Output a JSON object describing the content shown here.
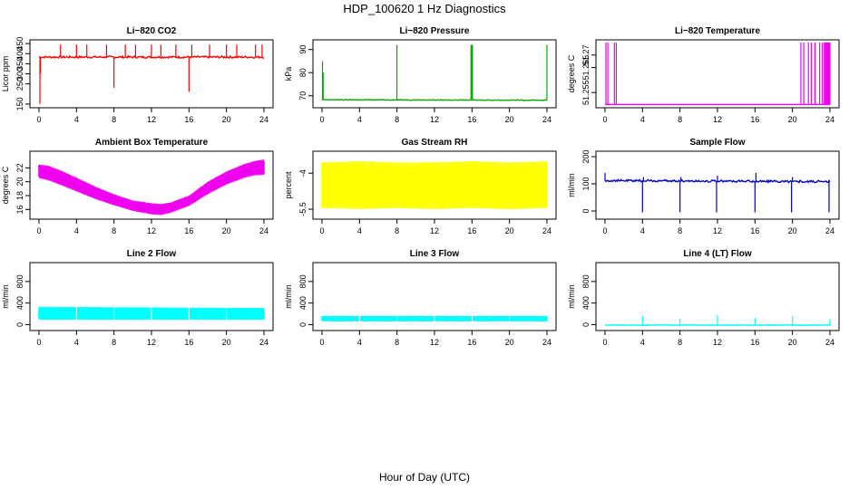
{
  "figure": {
    "title": "HDP_100620  1 Hz Diagnostics",
    "xlabel": "Hour of Day (UTC)"
  },
  "chart_data": [
    {
      "type": "line",
      "id": "co2",
      "title": "Li−820 CO2",
      "ylabel": "Licor ppm",
      "color": "#ff0000",
      "xlim": [
        0,
        24
      ],
      "ylim": [
        145,
        455
      ],
      "xticks": [
        0,
        4,
        8,
        12,
        16,
        20,
        24
      ],
      "yticks": [
        150,
        250,
        300,
        350,
        400,
        450
      ],
      "baseline": [
        [
          0,
          383
        ],
        [
          24,
          383
        ]
      ],
      "noise": 5,
      "spikes": [
        [
          0.1,
          150
        ],
        [
          0.15,
          300
        ],
        [
          2.3,
          445
        ],
        [
          4,
          445
        ],
        [
          5.1,
          445
        ],
        [
          7.2,
          445
        ],
        [
          8,
          230
        ],
        [
          9.2,
          445
        ],
        [
          10.3,
          445
        ],
        [
          12,
          445
        ],
        [
          13,
          445
        ],
        [
          14.6,
          445
        ],
        [
          16,
          210
        ],
        [
          16.3,
          445
        ],
        [
          18.2,
          445
        ],
        [
          20,
          445
        ],
        [
          21.1,
          445
        ],
        [
          23.1,
          445
        ],
        [
          23.8,
          445
        ]
      ]
    },
    {
      "type": "line",
      "id": "pressure",
      "title": "Li−820 Pressure",
      "ylabel": "kPa",
      "color": "#00aa00",
      "xlim": [
        0,
        24
      ],
      "ylim": [
        66,
        93
      ],
      "xticks": [
        0,
        4,
        8,
        12,
        16,
        20,
        24
      ],
      "yticks": [
        70,
        80,
        90
      ],
      "baseline": [
        [
          0,
          68.3
        ],
        [
          24,
          68.1
        ]
      ],
      "noise": 0.15,
      "spikes": [
        [
          0.05,
          85
        ],
        [
          0.12,
          80
        ],
        [
          8,
          92
        ],
        [
          15.9,
          92
        ],
        [
          16,
          92
        ],
        [
          16.05,
          92
        ],
        [
          24,
          92
        ]
      ]
    },
    {
      "type": "line",
      "id": "temperature",
      "title": "Li−820 Temperature",
      "ylabel": "degrees C",
      "color": "#ee00ee",
      "xlim": [
        0,
        24
      ],
      "ylim": [
        51.25,
        51.275
      ],
      "xticks": [
        0,
        4,
        8,
        12,
        16,
        20,
        24
      ],
      "yticks": [
        51.255,
        51.265,
        51.27
      ],
      "baseline": [
        [
          0,
          51.2502
        ],
        [
          24,
          51.2502
        ]
      ],
      "noise": 0,
      "spikes": [
        [
          0.1,
          51.275
        ],
        [
          0.3,
          51.275
        ],
        [
          1.0,
          51.275
        ],
        [
          1.2,
          51.275
        ],
        [
          20.9,
          51.275
        ],
        [
          21.2,
          51.275
        ],
        [
          21.7,
          51.275
        ],
        [
          22.0,
          51.275
        ],
        [
          22.4,
          51.275
        ],
        [
          22.9,
          51.275
        ],
        [
          23.2,
          51.275
        ],
        [
          23.4,
          51.275
        ],
        [
          23.5,
          51.275
        ],
        [
          23.6,
          51.275
        ],
        [
          23.7,
          51.275
        ],
        [
          23.8,
          51.275
        ],
        [
          23.9,
          51.275
        ],
        [
          24,
          51.275
        ]
      ]
    },
    {
      "type": "area",
      "id": "ambient_box_temp",
      "title": "Ambient Box Temperature",
      "ylabel": "degrees C",
      "color": "#ee00ee",
      "xlim": [
        0,
        24
      ],
      "ylim": [
        15,
        24
      ],
      "xticks": [
        0,
        4,
        8,
        12,
        16,
        20,
        24
      ],
      "yticks": [
        16,
        18,
        20,
        22
      ],
      "upper": [
        [
          0,
          22.5
        ],
        [
          1,
          22.3
        ],
        [
          2,
          21.8
        ],
        [
          4,
          20.6
        ],
        [
          6,
          19.3
        ],
        [
          8,
          18.2
        ],
        [
          10,
          17.3
        ],
        [
          12,
          16.9
        ],
        [
          13,
          16.8
        ],
        [
          14,
          17.0
        ],
        [
          16,
          18.0
        ],
        [
          18,
          20.0
        ],
        [
          20,
          21.5
        ],
        [
          22,
          22.6
        ],
        [
          23,
          23.0
        ],
        [
          24,
          23.2
        ]
      ],
      "lower": [
        [
          0,
          20.5
        ],
        [
          1,
          20.2
        ],
        [
          2,
          19.7
        ],
        [
          4,
          18.6
        ],
        [
          6,
          17.5
        ],
        [
          8,
          16.6
        ],
        [
          10,
          15.8
        ],
        [
          12,
          15.3
        ],
        [
          13,
          15.2
        ],
        [
          14,
          15.5
        ],
        [
          16,
          16.5
        ],
        [
          18,
          18.2
        ],
        [
          20,
          19.6
        ],
        [
          22,
          20.6
        ],
        [
          23,
          20.9
        ],
        [
          24,
          21.0
        ]
      ]
    },
    {
      "type": "area",
      "id": "gas_stream_rh",
      "title": "Gas Stream RH",
      "ylabel": "percent",
      "color": "#ffff00",
      "xlim": [
        0,
        24
      ],
      "ylim": [
        -5.8,
        -3.2
      ],
      "xticks": [
        0,
        4,
        8,
        12,
        16,
        20,
        24
      ],
      "yticks": [
        -5.5,
        -4.0
      ],
      "upper": [
        [
          0,
          -3.55
        ],
        [
          4,
          -3.5
        ],
        [
          8,
          -3.55
        ],
        [
          12,
          -3.55
        ],
        [
          16,
          -3.5
        ],
        [
          20,
          -3.55
        ],
        [
          24,
          -3.5
        ]
      ],
      "lower": [
        [
          0,
          -5.45
        ],
        [
          4,
          -5.5
        ],
        [
          8,
          -5.45
        ],
        [
          12,
          -5.5
        ],
        [
          16,
          -5.45
        ],
        [
          20,
          -5.5
        ],
        [
          24,
          -5.45
        ]
      ]
    },
    {
      "type": "line",
      "id": "sample_flow",
      "title": "Sample Flow",
      "ylabel": "ml/min",
      "color": "#0000cc",
      "xlim": [
        0,
        24
      ],
      "ylim": [
        -20,
        210
      ],
      "xticks": [
        0,
        4,
        8,
        12,
        16,
        20,
        24
      ],
      "yticks": [
        0,
        100,
        200
      ],
      "baseline": [
        [
          0,
          112
        ],
        [
          24,
          108
        ]
      ],
      "noise": 4,
      "spikes": [
        [
          0,
          140
        ],
        [
          4,
          -5
        ],
        [
          4.1,
          125
        ],
        [
          8,
          -5
        ],
        [
          8.1,
          125
        ],
        [
          11.9,
          -5
        ],
        [
          12,
          130
        ],
        [
          16,
          -5
        ],
        [
          16.1,
          140
        ],
        [
          19.9,
          -5
        ],
        [
          20,
          125
        ],
        [
          23.9,
          -5
        ],
        [
          24,
          110
        ]
      ]
    },
    {
      "type": "area",
      "id": "line2_flow",
      "title": "Line 2 Flow",
      "ylabel": "ml/min",
      "color": "#00ffff",
      "xlim": [
        0,
        24
      ],
      "ylim": [
        -60,
        1100
      ],
      "xticks": [
        0,
        4,
        8,
        12,
        16,
        20,
        24
      ],
      "yticks": [
        0,
        400,
        800
      ],
      "upper": [
        [
          0,
          330
        ],
        [
          24,
          310
        ]
      ],
      "lower": [
        [
          0,
          90
        ],
        [
          24,
          90
        ]
      ],
      "gaps": [
        4,
        8,
        12,
        16,
        20
      ]
    },
    {
      "type": "area",
      "id": "line3_flow",
      "title": "Line 3 Flow",
      "ylabel": "ml/min",
      "color": "#00ffff",
      "xlim": [
        0,
        24
      ],
      "ylim": [
        -60,
        1100
      ],
      "xticks": [
        0,
        4,
        8,
        12,
        16,
        20,
        24
      ],
      "yticks": [
        0,
        400,
        800
      ],
      "upper": [
        [
          0,
          160
        ],
        [
          24,
          160
        ]
      ],
      "lower": [
        [
          0,
          60
        ],
        [
          24,
          60
        ]
      ],
      "gaps": [
        4,
        8,
        12,
        16,
        20
      ]
    },
    {
      "type": "line",
      "id": "line4_flow",
      "title": "Line 4 (LT) Flow",
      "ylabel": "ml/min",
      "color": "#00ffff",
      "xlim": [
        0,
        24
      ],
      "ylim": [
        -60,
        1100
      ],
      "xticks": [
        0,
        4,
        8,
        12,
        16,
        20,
        24
      ],
      "yticks": [
        0,
        400,
        800
      ],
      "baseline": [
        [
          0,
          -10
        ],
        [
          24,
          -10
        ]
      ],
      "noise": 6,
      "spikes": [
        [
          4,
          160
        ],
        [
          8,
          110
        ],
        [
          12,
          170
        ],
        [
          16,
          120
        ],
        [
          20,
          160
        ],
        [
          24,
          100
        ]
      ]
    }
  ]
}
